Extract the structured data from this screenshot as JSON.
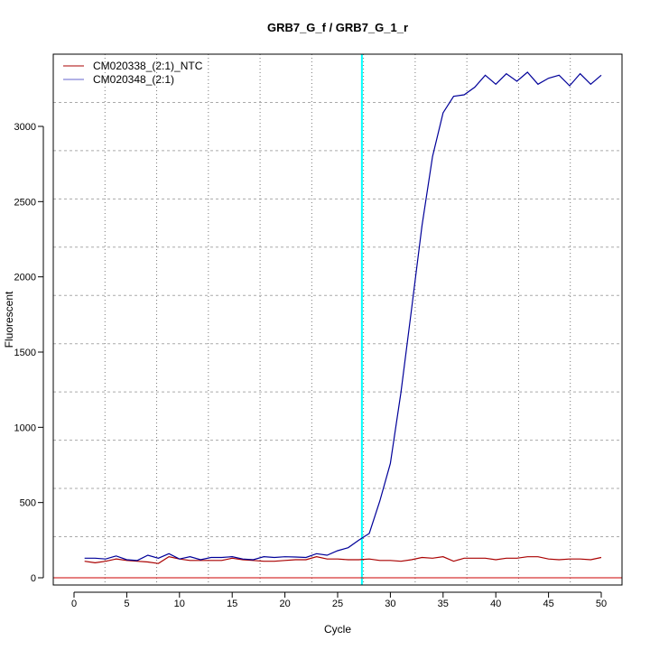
{
  "chart_data": {
    "type": "line",
    "title": "GRB7_G_f / GRB7_G_1_r",
    "xlabel": "Cycle",
    "ylabel": "Fluorescent",
    "xlim": [
      -2,
      52
    ],
    "ylim": [
      -50,
      3480
    ],
    "xticks": [
      0,
      5,
      10,
      15,
      20,
      25,
      30,
      35,
      40,
      45,
      50
    ],
    "yticks": [
      0,
      500,
      1000,
      1500,
      2000,
      2500,
      3000
    ],
    "grid": true,
    "legend_position": "top-left",
    "threshold_line": {
      "y": 0,
      "color": "#cc0000"
    },
    "cycle_marker": {
      "x": 27.3,
      "color": "#00ffff"
    },
    "x": [
      1,
      2,
      3,
      4,
      5,
      6,
      7,
      8,
      9,
      10,
      11,
      12,
      13,
      14,
      15,
      16,
      17,
      18,
      19,
      20,
      21,
      22,
      23,
      24,
      25,
      26,
      27,
      28,
      29,
      30,
      31,
      32,
      33,
      34,
      35,
      36,
      37,
      38,
      39,
      40,
      41,
      42,
      43,
      44,
      45,
      46,
      47,
      48,
      49,
      50
    ],
    "series": [
      {
        "name": "CM020338_(2:1)_NTC",
        "color": "#aa0000",
        "values": [
          110,
          100,
          110,
          125,
          115,
          110,
          105,
          95,
          140,
          125,
          115,
          115,
          115,
          115,
          130,
          120,
          115,
          110,
          110,
          115,
          120,
          120,
          140,
          125,
          125,
          120,
          120,
          125,
          115,
          115,
          110,
          120,
          135,
          130,
          140,
          110,
          130,
          130,
          130,
          120,
          130,
          130,
          140,
          140,
          125,
          120,
          125,
          125,
          120,
          135
        ]
      },
      {
        "name": "CM020348_(2:1)",
        "color": "#000099",
        "values": [
          130,
          130,
          125,
          145,
          120,
          115,
          150,
          130,
          160,
          125,
          140,
          120,
          135,
          135,
          140,
          125,
          120,
          140,
          135,
          140,
          138,
          135,
          160,
          150,
          180,
          200,
          250,
          295,
          510,
          760,
          1230,
          1780,
          2340,
          2800,
          3090,
          3200,
          3210,
          3260,
          3340,
          3280,
          3350,
          3300,
          3360,
          3280,
          3320,
          3340,
          3270,
          3350,
          3280,
          3340
        ]
      }
    ]
  }
}
